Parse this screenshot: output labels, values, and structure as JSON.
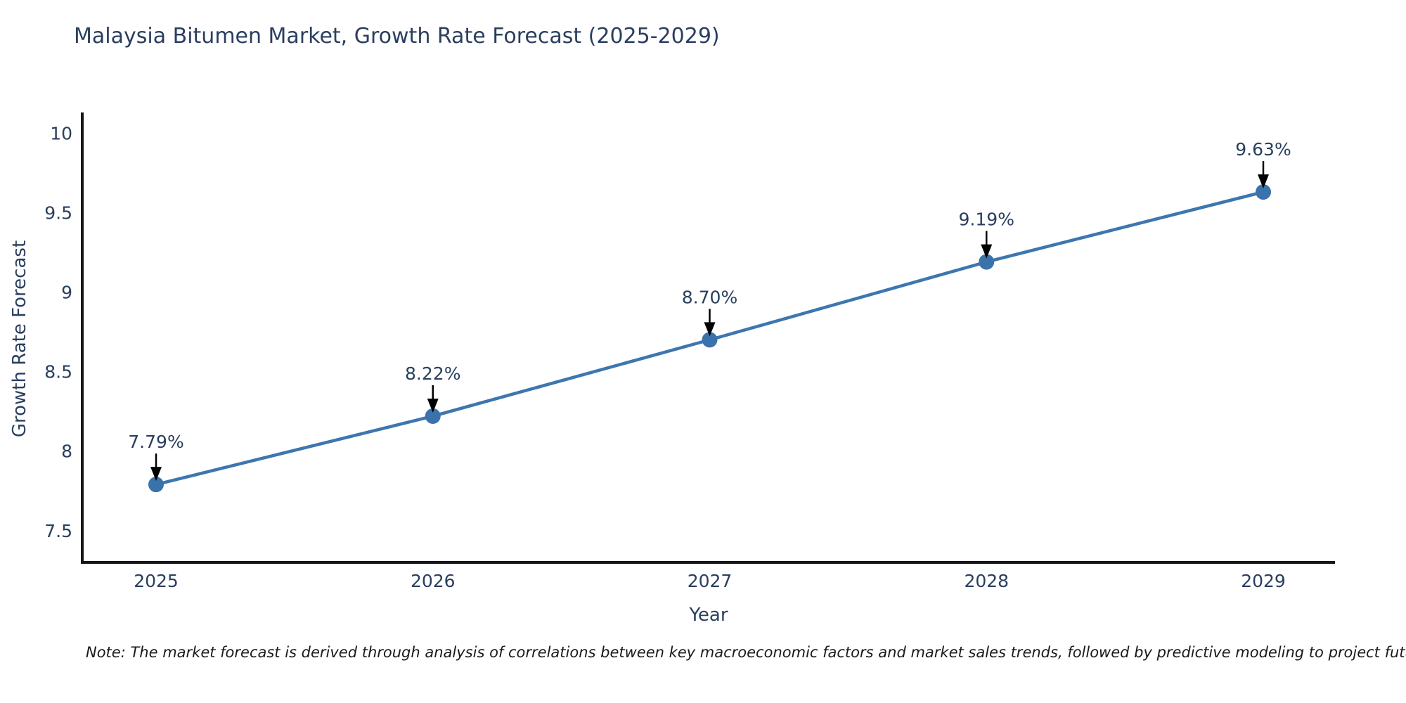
{
  "page": {
    "title": "Malaysia Bitumen Market, Growth Rate Forecast (2025-2029)",
    "note": "Note: The market forecast is derived through analysis of correlations between key macroeconomic factors and market sales trends, followed by predictive modeling to project future sales"
  },
  "chart_data": {
    "type": "line",
    "title": "Malaysia Bitumen Market, Growth Rate Forecast (2025-2029)",
    "xlabel": "Year",
    "ylabel": "Growth Rate Forecast",
    "categories": [
      "2025",
      "2026",
      "2027",
      "2028",
      "2029"
    ],
    "series": [
      {
        "name": "Growth Rate Forecast",
        "values": [
          7.79,
          8.22,
          8.7,
          9.19,
          9.63
        ]
      }
    ],
    "point_labels": [
      "7.79%",
      "8.22%",
      "8.70%",
      "9.19%",
      "9.63%"
    ],
    "y_ticks": [
      7.5,
      8,
      8.5,
      9,
      9.5,
      10
    ],
    "y_tick_labels": [
      "7.5",
      "8",
      "8.5",
      "9",
      "9.5",
      "10"
    ],
    "ylim": [
      7.3,
      10.13
    ],
    "grid": false,
    "legend_position": "none",
    "annotation_arrows": true,
    "colors": {
      "line": "#3e76af",
      "marker": "#3a72ac",
      "arrow": "#000000",
      "axis": "#161616",
      "text": "#2a3f5f",
      "background": "#ffffff"
    }
  }
}
